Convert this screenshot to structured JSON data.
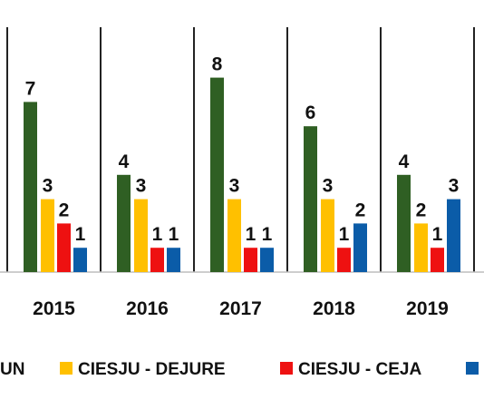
{
  "chart_data": {
    "type": "bar",
    "categories": [
      "2015",
      "2016",
      "2017",
      "2018",
      "2019"
    ],
    "series": [
      {
        "name": "UN",
        "color": "#2f5f23",
        "values": [
          7,
          4,
          8,
          6,
          4
        ]
      },
      {
        "name": "CIESJU - DEJURE",
        "color": "#ffc000",
        "values": [
          3,
          3,
          3,
          3,
          2
        ]
      },
      {
        "name": "CIESJU - CEJA",
        "color": "#ee1111",
        "values": [
          2,
          1,
          1,
          1,
          1
        ]
      },
      {
        "name": "",
        "color": "#0b5ca8",
        "values": [
          1,
          1,
          1,
          2,
          3
        ]
      }
    ],
    "ylim": [
      0,
      8
    ],
    "grid": false,
    "legend_position": "bottom"
  }
}
